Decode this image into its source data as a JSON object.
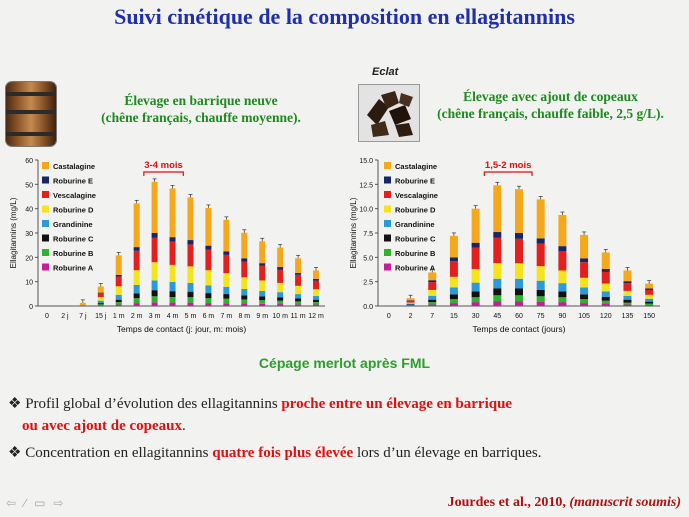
{
  "title": "Suivi cinétique de la composition en ellagitannins",
  "eclat_label": "Eclat",
  "left_heading_1": "Élevage en barrique neuve",
  "left_heading_2": "(chêne français, chauffe moyenne).",
  "right_heading_1": "Élevage avec ajout de copeaux",
  "right_heading_2": "(chêne français, chauffe faible, 2,5 g/L).",
  "cepage": "Cépage merlot après FML",
  "bullet1_a": "Profil global d’évolution des ellagitannins",
  "bullet1_b": "proche entre un élevage en barrique",
  "bullet1_c": "ou avec ajout de copeaux",
  "bullet1_d": ".",
  "bullet2_a": "Concentration en ellagitannins",
  "bullet2_b": "quatre fois plus élevée",
  "bullet2_c": "lors d’un élevage en barriques.",
  "reference_a": "Jourdes et al., 2010,",
  "reference_b": "(manuscrit soumis)",
  "chart_data": [
    {
      "type": "bar",
      "stacked": true,
      "xlabel": "Temps de contact (j: jour, m: mois)",
      "ylabel": "Ellagitannins (mg/L)",
      "ylim": [
        0,
        60
      ],
      "yticks": [
        0,
        10,
        20,
        30,
        40,
        50,
        60
      ],
      "annotation": "3-4 mois",
      "categories": [
        "0",
        "2 j",
        "7 j",
        "15 j",
        "1 m",
        "2 m",
        "3 m",
        "4 m",
        "5 m",
        "6 m",
        "7 m",
        "8 m",
        "9 m",
        "10 m",
        "11 m",
        "12 m"
      ],
      "series": [
        {
          "name": "Roburine A",
          "color": "#c21e9e",
          "values": [
            0,
            0,
            0,
            0.2,
            0.6,
            1.2,
            1.5,
            1.4,
            1.4,
            1.2,
            1.1,
            1.0,
            0.9,
            0.8,
            0.7,
            0.6
          ]
        },
        {
          "name": "Roburine B",
          "color": "#2bb52b",
          "values": [
            0,
            0,
            0,
            0.5,
            1.0,
            2.0,
            2.5,
            2.3,
            2.2,
            2.0,
            1.9,
            1.7,
            1.5,
            1.4,
            1.2,
            1.0
          ]
        },
        {
          "name": "Roburine C",
          "color": "#111111",
          "values": [
            0,
            0,
            0,
            0.5,
            1.0,
            2.0,
            2.5,
            2.4,
            2.3,
            2.1,
            1.9,
            1.7,
            1.5,
            1.4,
            1.2,
            1.0
          ]
        },
        {
          "name": "Grandinine",
          "color": "#2a9ad8",
          "values": [
            0,
            0,
            0,
            1.0,
            2.0,
            3.5,
            4.0,
            3.8,
            3.6,
            3.2,
            3.0,
            2.6,
            2.3,
            2.1,
            1.8,
            1.5
          ]
        },
        {
          "name": "Roburine D",
          "color": "#f5e41c",
          "values": [
            0,
            0,
            0,
            1.5,
            3.5,
            6.0,
            7.5,
            7.0,
            6.8,
            6.2,
            5.6,
            4.8,
            4.3,
            3.8,
            3.4,
            2.8
          ]
        },
        {
          "name": "Vescalagine",
          "color": "#e3201e",
          "values": [
            0,
            0,
            0.3,
            1.5,
            4.0,
            8.0,
            10.0,
            9.5,
            9.0,
            8.5,
            7.5,
            6.5,
            6.0,
            5.5,
            4.5,
            3.5
          ]
        },
        {
          "name": "Roburine E",
          "color": "#16266a",
          "values": [
            0,
            0,
            0,
            0.3,
            0.7,
            1.5,
            2.0,
            1.9,
            1.8,
            1.6,
            1.4,
            1.3,
            1.1,
            1.0,
            0.8,
            0.7
          ]
        },
        {
          "name": "Castalagine",
          "color": "#f5a81c",
          "values": [
            0,
            0,
            1.0,
            2.5,
            8.0,
            18.0,
            21.0,
            20.0,
            17.5,
            15.5,
            13.0,
            10.5,
            9.0,
            8.0,
            6.0,
            3.5
          ]
        }
      ]
    },
    {
      "type": "bar",
      "stacked": true,
      "xlabel": "Temps de contact (jours)",
      "ylabel": "Ellagitannins (mg/L)",
      "ylim": [
        0,
        15
      ],
      "yticks": [
        0.0,
        2.5,
        5.0,
        7.5,
        10.0,
        12.5,
        15.0
      ],
      "annotation": "1,5-2 mois",
      "categories": [
        "0",
        "2",
        "7",
        "15",
        "30",
        "45",
        "60",
        "75",
        "90",
        "105",
        "120",
        "135",
        "150"
      ],
      "series": [
        {
          "name": "Roburine A",
          "color": "#c21e9e",
          "values": [
            0,
            0.05,
            0.15,
            0.3,
            0.4,
            0.5,
            0.5,
            0.45,
            0.4,
            0.3,
            0.25,
            0.15,
            0.1
          ]
        },
        {
          "name": "Roburine B",
          "color": "#2bb52b",
          "values": [
            0,
            0.05,
            0.25,
            0.4,
            0.5,
            0.6,
            0.6,
            0.55,
            0.5,
            0.4,
            0.3,
            0.2,
            0.15
          ]
        },
        {
          "name": "Roburine C",
          "color": "#111111",
          "values": [
            0,
            0.05,
            0.25,
            0.5,
            0.6,
            0.7,
            0.7,
            0.65,
            0.6,
            0.5,
            0.4,
            0.3,
            0.2
          ]
        },
        {
          "name": "Grandinine",
          "color": "#2a9ad8",
          "values": [
            0,
            0.1,
            0.4,
            0.7,
            0.9,
            1.0,
            1.0,
            0.95,
            0.85,
            0.7,
            0.55,
            0.4,
            0.3
          ]
        },
        {
          "name": "Roburine D",
          "color": "#f5e41c",
          "values": [
            0,
            0.1,
            0.6,
            1.1,
            1.4,
            1.6,
            1.6,
            1.5,
            1.3,
            1.0,
            0.8,
            0.5,
            0.4
          ]
        },
        {
          "name": "Vescalagine",
          "color": "#e3201e",
          "values": [
            0,
            0.2,
            0.8,
            1.6,
            2.2,
            2.6,
            2.5,
            2.3,
            2.0,
            1.6,
            1.2,
            0.8,
            0.5
          ]
        },
        {
          "name": "Roburine E",
          "color": "#16266a",
          "values": [
            0,
            0.05,
            0.2,
            0.4,
            0.5,
            0.6,
            0.6,
            0.55,
            0.5,
            0.4,
            0.3,
            0.2,
            0.15
          ]
        },
        {
          "name": "Castalagine",
          "color": "#f5a81c",
          "values": [
            0,
            0.2,
            0.8,
            2.2,
            3.5,
            4.8,
            4.5,
            4.0,
            3.2,
            2.4,
            1.7,
            1.1,
            0.5
          ]
        }
      ]
    }
  ]
}
